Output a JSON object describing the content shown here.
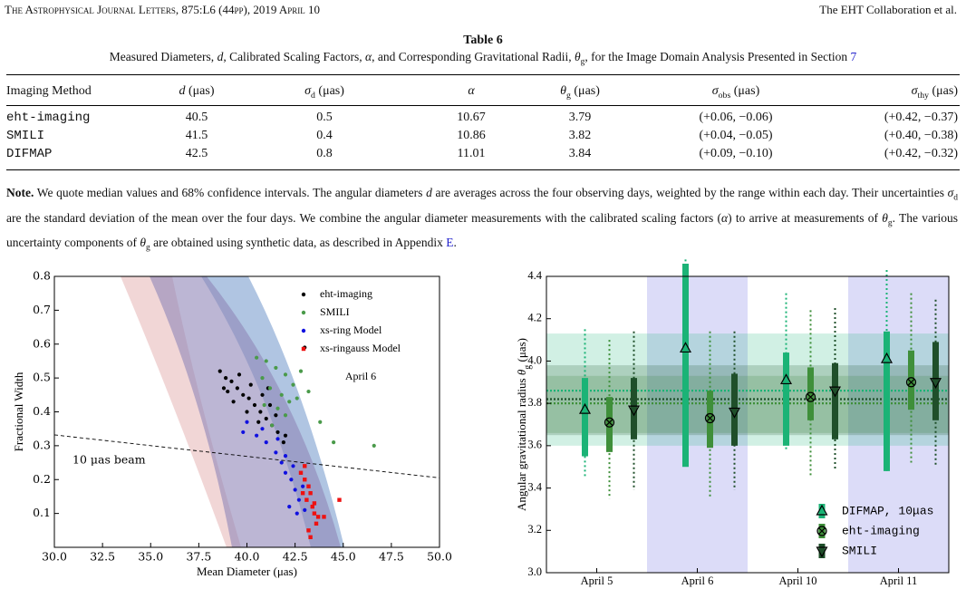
{
  "header": {
    "journal": "The Astrophysical Journal Letters, 875:L6 (44pp), 2019 April 10",
    "authors": "The EHT Collaboration et al."
  },
  "table": {
    "title": "Table 6",
    "caption": [
      "Measured Diameters, ",
      {
        "i": "d"
      },
      ", Calibrated Scaling Factors, ",
      {
        "i": "α"
      },
      ", and Corresponding Gravitational Radii, ",
      {
        "i": "θ"
      },
      {
        "sub": "g"
      },
      ", for the Image Domain Analysis Presented in Section ",
      {
        "link": "7"
      }
    ],
    "headers": [
      [
        "Imaging Method"
      ],
      [
        {
          "i": "d"
        },
        " (μas)"
      ],
      [
        {
          "i": "σ"
        },
        {
          "sub": "d"
        },
        " (μas)"
      ],
      [
        {
          "i": "α"
        }
      ],
      [
        {
          "i": "θ"
        },
        {
          "sub": "g"
        },
        " (μas)"
      ],
      [
        {
          "i": "σ"
        },
        {
          "sub": "obs"
        },
        " (μas)"
      ],
      [
        {
          "i": "σ"
        },
        {
          "sub": "thy"
        },
        " (μas)"
      ]
    ],
    "rows": [
      [
        "eht-imaging",
        "40.5",
        "0.5",
        "10.67",
        "3.79",
        "(+0.06, −0.06)",
        "(+0.42, −0.37)"
      ],
      [
        "SMILI",
        "41.5",
        "0.4",
        "10.86",
        "3.82",
        "(+0.04, −0.05)",
        "(+0.40, −0.38)"
      ],
      [
        "DIFMAP",
        "42.5",
        "0.8",
        "11.01",
        "3.84",
        "(+0.09, −0.10)",
        "(+0.42, −0.32)"
      ]
    ]
  },
  "note": [
    {
      "b": "Note."
    },
    " We quote median values and 68% confidence intervals. The angular diameters ",
    {
      "i": "d"
    },
    " are averages across the four observing days, weighted by the range within each day. Their uncertainties ",
    {
      "i": "σ"
    },
    {
      "sub": "d"
    },
    " are the standard deviation of the mean over the four days. We combine the angular diameter measurements with the calibrated scaling factors (",
    {
      "i": "α"
    },
    ") to arrive at measurements of ",
    {
      "i": "θ"
    },
    {
      "sub": "g"
    },
    ". The various uncertainty components of ",
    {
      "i": "θ"
    },
    {
      "sub": "g"
    },
    " are obtained using synthetic data, as described in Appendix ",
    {
      "link": "E"
    },
    "."
  ],
  "chart_data": [
    {
      "type": "scatter",
      "xlabel": "Mean Diameter (μas)",
      "ylabel": "Fractional Width",
      "xlim": [
        30,
        50
      ],
      "ylim": [
        0,
        0.8
      ],
      "xticks": [
        {
          "value": 30,
          "label": "30.0"
        },
        32.5,
        {
          "value": 35,
          "label": "35.0"
        },
        37.5,
        {
          "value": 40,
          "label": "40.0"
        },
        42.5,
        {
          "value": 45,
          "label": "45.0"
        },
        47.5,
        {
          "value": 50,
          "label": "50.0"
        }
      ],
      "yticks": [
        0.1,
        0.2,
        0.3,
        0.4,
        0.5,
        0.6,
        0.7,
        0.8
      ],
      "legend": "upper right",
      "annotations": [
        "April 6"
      ],
      "lines": [
        {
          "label": "10 μas beam",
          "x": [
            30,
            50
          ],
          "y": [
            0.332,
            0.205
          ]
        }
      ],
      "series": [
        {
          "name": "eht-imaging",
          "color": "#000000",
          "marker": "circle",
          "x": [
            38.6,
            38.9,
            39.2,
            39.5,
            39.8,
            40.1,
            40.4,
            40.7,
            41.0,
            41.3,
            41.6,
            41.9,
            39.0,
            39.6,
            40.2,
            40.8,
            41.2,
            40.0,
            40.6,
            41.5,
            39.3,
            38.8,
            42.0,
            41.1,
            43.0
          ],
          "y": [
            0.52,
            0.5,
            0.49,
            0.47,
            0.45,
            0.44,
            0.42,
            0.4,
            0.38,
            0.36,
            0.34,
            0.31,
            0.46,
            0.51,
            0.48,
            0.45,
            0.42,
            0.4,
            0.37,
            0.39,
            0.43,
            0.47,
            0.33,
            0.47,
            0.59
          ]
        },
        {
          "name": "SMILI",
          "color": "#4a9a4a",
          "marker": "circle",
          "x": [
            40.5,
            41.0,
            41.5,
            42.0,
            42.4,
            41.2,
            41.8,
            42.2,
            40.8,
            41.6,
            42.6,
            43.2,
            43.8,
            44.5,
            42.8,
            41.3,
            40.9,
            42.0,
            46.6
          ],
          "y": [
            0.56,
            0.55,
            0.53,
            0.51,
            0.48,
            0.47,
            0.45,
            0.43,
            0.5,
            0.41,
            0.44,
            0.46,
            0.37,
            0.31,
            0.52,
            0.36,
            0.42,
            0.39,
            0.3
          ]
        },
        {
          "name": "xs-ring Model",
          "color": "#1010e0",
          "marker": "circle",
          "x": [
            40.0,
            40.5,
            41.0,
            41.5,
            41.8,
            42.0,
            42.3,
            42.5,
            42.7,
            42.2,
            42.6,
            41.6,
            40.8,
            42.0,
            42.9,
            43.0,
            42.4,
            39.8
          ],
          "y": [
            0.37,
            0.33,
            0.31,
            0.28,
            0.25,
            0.22,
            0.2,
            0.17,
            0.14,
            0.12,
            0.1,
            0.32,
            0.35,
            0.27,
            0.18,
            0.11,
            0.24,
            0.34
          ]
        },
        {
          "name": "xs-ringauss Model",
          "color": "#ee1111",
          "marker": "square",
          "x": [
            42.8,
            43.0,
            43.2,
            43.3,
            43.1,
            43.4,
            43.5,
            43.6,
            43.2,
            42.9,
            43.0,
            43.5,
            43.7,
            44.0,
            44.8,
            43.3
          ],
          "y": [
            0.22,
            0.2,
            0.18,
            0.16,
            0.14,
            0.12,
            0.1,
            0.07,
            0.05,
            0.16,
            0.24,
            0.13,
            0.09,
            0.09,
            0.14,
            0.03
          ]
        }
      ]
    },
    {
      "type": "errorbar",
      "categories": [
        "April 5",
        "April 6",
        "April 10",
        "April 11"
      ],
      "ylim": [
        3.0,
        4.4
      ],
      "yticks": [
        {
          "value": 3,
          "label": "3.0"
        },
        3.2,
        3.4,
        3.6,
        3.8,
        {
          "value": 4,
          "label": "4.0"
        },
        4.2,
        4.4
      ],
      "ylabel": [
        "Angular gravitational radius ",
        {
          "i": "θ"
        },
        {
          "sub": "g"
        },
        " (μas)"
      ],
      "legend": "lower right",
      "shaded_categories": [
        1,
        3
      ],
      "series": [
        {
          "name": "DIFMAP, 10μas",
          "color": "#1bb376",
          "marker": "triangle-up",
          "values": [
            3.77,
            4.06,
            3.91,
            4.01
          ],
          "low68": [
            3.55,
            3.5,
            3.6,
            3.48
          ],
          "high68": [
            3.92,
            4.46,
            4.04,
            4.14
          ],
          "low95": [
            3.45,
            3.5,
            3.58,
            3.48
          ],
          "high95": [
            4.15,
            4.48,
            4.32,
            4.43
          ],
          "mean": 3.86,
          "band": [
            3.6,
            4.13
          ]
        },
        {
          "name": "eht-imaging",
          "color": "#3f8f3a",
          "marker": "x-circle",
          "values": [
            3.71,
            3.73,
            3.83,
            3.9
          ],
          "low68": [
            3.57,
            3.59,
            3.72,
            3.77
          ],
          "high68": [
            3.83,
            3.86,
            3.97,
            4.05
          ],
          "low95": [
            3.35,
            3.36,
            3.46,
            3.52
          ],
          "high95": [
            4.1,
            4.14,
            4.24,
            4.32
          ],
          "mean": 3.8,
          "band": [
            3.66,
            3.93
          ]
        },
        {
          "name": "SMILI",
          "color": "#1f4f2a",
          "marker": "triangle-down",
          "values": [
            3.77,
            3.76,
            3.86,
            3.9
          ],
          "low68": [
            3.63,
            3.6,
            3.63,
            3.72
          ],
          "high68": [
            3.92,
            3.94,
            3.99,
            4.09
          ],
          "low95": [
            3.39,
            3.39,
            3.48,
            3.5
          ],
          "high95": [
            4.14,
            4.14,
            4.25,
            4.29
          ],
          "mean": 3.82,
          "band": [
            3.65,
            3.98
          ]
        }
      ]
    }
  ]
}
